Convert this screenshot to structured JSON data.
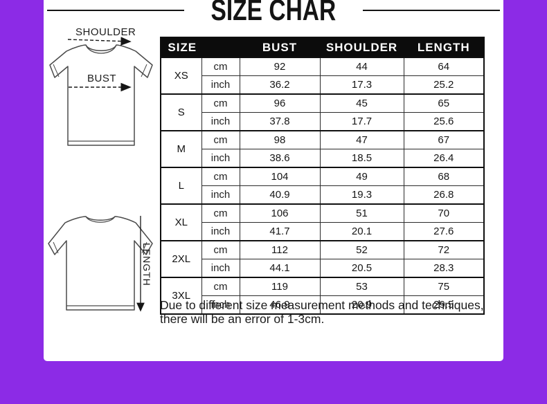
{
  "colors": {
    "background": "#8c2be6",
    "card": "#ffffff",
    "table_header_bg": "#0c0c0c",
    "table_header_text": "#ffffff",
    "line_art": "#4a4a4a"
  },
  "title": "SIZE CHAR",
  "diagram": {
    "shoulder_label": "SHOULDER",
    "bust_label": "BUST",
    "length_label": "LENGTH",
    "shoulder_arrow_icon": "dashed-right-arrow",
    "bust_arrow_icon": "dashed-right-arrow",
    "length_arrow_icon": "solid-down-arrow"
  },
  "table": {
    "headers": [
      "SIZE",
      "BUST",
      "SHOULDER",
      "LENGTH"
    ],
    "unit_labels": [
      "cm",
      "inch"
    ],
    "sizes": [
      {
        "label": "XS",
        "cm": [
          "92",
          "44",
          "64"
        ],
        "inch": [
          "36.2",
          "17.3",
          "25.2"
        ]
      },
      {
        "label": "S",
        "cm": [
          "96",
          "45",
          "65"
        ],
        "inch": [
          "37.8",
          "17.7",
          "25.6"
        ]
      },
      {
        "label": "M",
        "cm": [
          "98",
          "47",
          "67"
        ],
        "inch": [
          "38.6",
          "18.5",
          "26.4"
        ]
      },
      {
        "label": "L",
        "cm": [
          "104",
          "49",
          "68"
        ],
        "inch": [
          "40.9",
          "19.3",
          "26.8"
        ]
      },
      {
        "label": "XL",
        "cm": [
          "106",
          "51",
          "70"
        ],
        "inch": [
          "41.7",
          "20.1",
          "27.6"
        ]
      },
      {
        "label": "2XL",
        "cm": [
          "112",
          "52",
          "72"
        ],
        "inch": [
          "44.1",
          "20.5",
          "28.3"
        ]
      },
      {
        "label": "3XL",
        "cm": [
          "119",
          "53",
          "75"
        ],
        "inch": [
          "46.9",
          "20.9",
          "29.5"
        ]
      }
    ]
  },
  "note": "Due to different size measurement methods and techniques, there will be an error of 1-3cm."
}
